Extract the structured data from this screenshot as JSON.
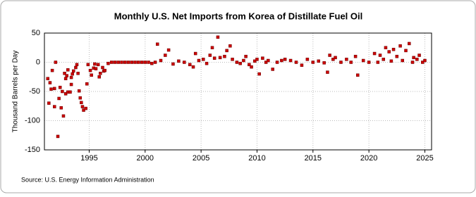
{
  "chart_data": {
    "type": "scatter",
    "title": "Monthly U.S. Net Imports from Korea of Distillate Fuel Oil",
    "y_label": "Thousand Barrels per Day",
    "source": "Source: U.S. Energy Information Administration",
    "xlim": [
      1991,
      2025.6
    ],
    "xticks": [
      1995,
      2000,
      2005,
      2010,
      2015,
      2020,
      2025
    ],
    "ylim": [
      -150,
      50
    ],
    "yticks": [
      -150,
      -100,
      -50,
      0,
      50
    ],
    "grid": true,
    "series": [
      {
        "name": "Net Imports",
        "color": "#cc0000",
        "x": [
          1991.3,
          1991.4,
          1991.5,
          1991.6,
          1991.7,
          1991.9,
          1991.9,
          1992.0,
          1992.2,
          1992.3,
          1992.4,
          1992.5,
          1992.6,
          1992.7,
          1992.8,
          1992.9,
          1992.9,
          1993.0,
          1993.1,
          1993.1,
          1993.3,
          1993.4,
          1993.4,
          1993.5,
          1993.6,
          1993.8,
          1993.9,
          1994.0,
          1994.1,
          1994.2,
          1994.3,
          1994.4,
          1994.5,
          1994.7,
          1994.8,
          1994.9,
          1995.1,
          1995.2,
          1995.4,
          1995.5,
          1995.6,
          1995.8,
          1995.9,
          1996.0,
          1996.2,
          1996.3,
          1996.4,
          1996.7,
          1997.0,
          1997.3,
          1997.6,
          1997.9,
          1998.2,
          1998.5,
          1998.8,
          1999.1,
          1999.4,
          1999.7,
          2000.0,
          2000.3,
          2000.6,
          2000.9,
          2001.1,
          2001.4,
          2001.8,
          2002.1,
          2002.5,
          2003.0,
          2003.5,
          2004.0,
          2004.3,
          2004.5,
          2004.8,
          2005.2,
          2005.5,
          2005.8,
          2006.0,
          2006.2,
          2006.5,
          2006.7,
          2007.1,
          2007.3,
          2007.6,
          2007.8,
          2008.2,
          2008.5,
          2008.8,
          2009.0,
          2009.3,
          2009.5,
          2009.8,
          2010.0,
          2010.2,
          2010.5,
          2010.8,
          2011.0,
          2011.4,
          2011.8,
          2012.2,
          2012.5,
          2013.0,
          2013.5,
          2014.0,
          2014.5,
          2015.0,
          2015.5,
          2016.0,
          2016.3,
          2016.5,
          2016.8,
          2017.0,
          2017.5,
          2018.0,
          2018.4,
          2018.8,
          2019.0,
          2019.5,
          2020.0,
          2020.5,
          2020.8,
          2021.0,
          2021.3,
          2021.5,
          2021.8,
          2022.0,
          2022.2,
          2022.5,
          2022.8,
          2023.0,
          2023.3,
          2023.6,
          2023.9,
          2024.0,
          2024.3,
          2024.5,
          2024.8,
          2025.0
        ],
        "values": [
          -28,
          -70,
          -35,
          -46,
          -14,
          -76,
          -45,
          0,
          -127,
          -62,
          -43,
          -78,
          -50,
          -92,
          -19,
          -54,
          -28,
          -23,
          -13,
          -51,
          -51,
          -38,
          -26,
          -20,
          -15,
          -9,
          -4,
          -19,
          -49,
          -61,
          -69,
          -76,
          -82,
          -79,
          -37,
          -4,
          -14,
          -22,
          -10,
          -3,
          -11,
          -4,
          -25,
          -19,
          -9,
          -15,
          -14,
          -2,
          0,
          0,
          0,
          0,
          0,
          0,
          0,
          0,
          0,
          0,
          0,
          0,
          -2,
          0,
          31,
          3,
          12,
          21,
          -3,
          2,
          0,
          -4,
          -8,
          15,
          3,
          5,
          -2,
          12,
          25,
          7,
          43,
          8,
          10,
          20,
          28,
          5,
          0,
          -2,
          3,
          10,
          -4,
          -8,
          2,
          5,
          -20,
          7,
          0,
          3,
          -12,
          0,
          3,
          5,
          3,
          0,
          -5,
          5,
          0,
          2,
          -1,
          -17,
          12,
          5,
          8,
          0,
          5,
          0,
          10,
          -22,
          3,
          0,
          15,
          0,
          12,
          5,
          25,
          18,
          2,
          22,
          10,
          28,
          3,
          20,
          32,
          0,
          8,
          5,
          12,
          0,
          3
        ]
      }
    ]
  }
}
